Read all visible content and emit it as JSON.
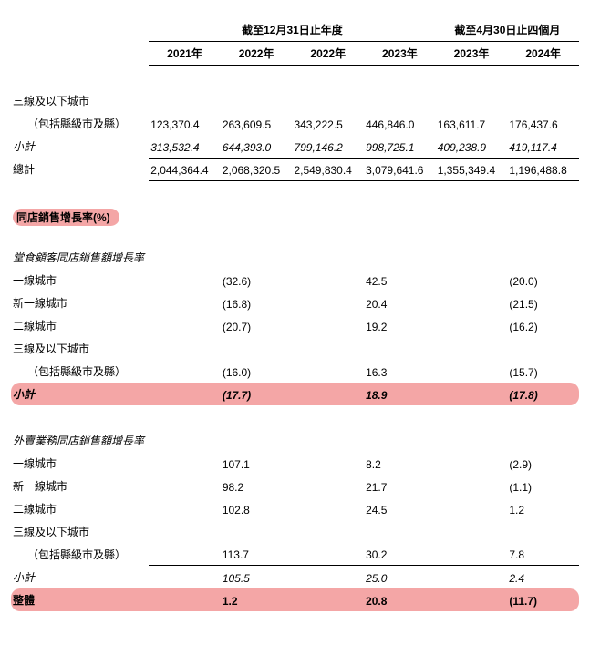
{
  "headers": {
    "period_year": "截至12月31日止年度",
    "period_4m": "截至4月30日止四個月",
    "years": [
      "2021年",
      "2022年",
      "2022年",
      "2023年",
      "2023年",
      "2024年"
    ]
  },
  "top_section": {
    "rows": [
      {
        "label": "三線及以下城市",
        "cells": [
          "",
          "",
          "",
          "",
          "",
          ""
        ]
      },
      {
        "label": "（包括縣級市及縣）",
        "indent": true,
        "cells": [
          "123,370.4",
          "263,609.5",
          "343,222.5",
          "446,846.0",
          "163,611.7",
          "176,437.6"
        ]
      }
    ],
    "subtotal": {
      "label": "小計",
      "cells": [
        "313,532.4",
        "644,393.0",
        "799,146.2",
        "998,725.1",
        "409,238.9",
        "419,117.4"
      ]
    },
    "total": {
      "label": "總計",
      "cells": [
        "2,044,364.4",
        "2,068,320.5",
        "2,549,830.4",
        "3,079,641.6",
        "1,355,349.4",
        "1,196,488.8"
      ]
    }
  },
  "growth_title": "同店銷售增長率(%)",
  "dinein": {
    "title": "堂食顧客同店銷售額增長率",
    "rows": [
      {
        "label": "一線城市",
        "cells": [
          "",
          "(32.6)",
          "",
          "42.5",
          "",
          "(20.0)"
        ]
      },
      {
        "label": "新一線城市",
        "cells": [
          "",
          "(16.8)",
          "",
          "20.4",
          "",
          "(21.5)"
        ]
      },
      {
        "label": "二線城市",
        "cells": [
          "",
          "(20.7)",
          "",
          "19.2",
          "",
          "(16.2)"
        ]
      },
      {
        "label": "三線及以下城市",
        "cells": [
          "",
          "",
          "",
          "",
          "",
          ""
        ]
      },
      {
        "label": "（包括縣級市及縣）",
        "indent": true,
        "cells": [
          "",
          "(16.0)",
          "",
          "16.3",
          "",
          "(15.7)"
        ]
      }
    ],
    "subtotal": {
      "label": "小計",
      "cells": [
        "",
        "(17.7)",
        "",
        "18.9",
        "",
        "(17.8)"
      ]
    }
  },
  "delivery": {
    "title": "外賣業務同店銷售額增長率",
    "rows": [
      {
        "label": "一線城市",
        "cells": [
          "",
          "107.1",
          "",
          "8.2",
          "",
          "(2.9)"
        ]
      },
      {
        "label": "新一線城市",
        "cells": [
          "",
          "98.2",
          "",
          "21.7",
          "",
          "(1.1)"
        ]
      },
      {
        "label": "二線城市",
        "cells": [
          "",
          "102.8",
          "",
          "24.5",
          "",
          "1.2"
        ]
      },
      {
        "label": "三線及以下城市",
        "cells": [
          "",
          "",
          "",
          "",
          "",
          ""
        ]
      },
      {
        "label": "（包括縣級市及縣）",
        "indent": true,
        "cells": [
          "",
          "113.7",
          "",
          "30.2",
          "",
          "7.8"
        ]
      }
    ],
    "subtotal": {
      "label": "小計",
      "cells": [
        "",
        "105.5",
        "",
        "25.0",
        "",
        "2.4"
      ]
    },
    "overall": {
      "label": "整體",
      "cells": [
        "",
        "1.2",
        "",
        "20.8",
        "",
        "(11.7)"
      ]
    }
  },
  "style": {
    "highlight_bg": "#f4a6a6",
    "text_color": "#000000",
    "bg_color": "#ffffff",
    "font_size_pt": 9
  }
}
